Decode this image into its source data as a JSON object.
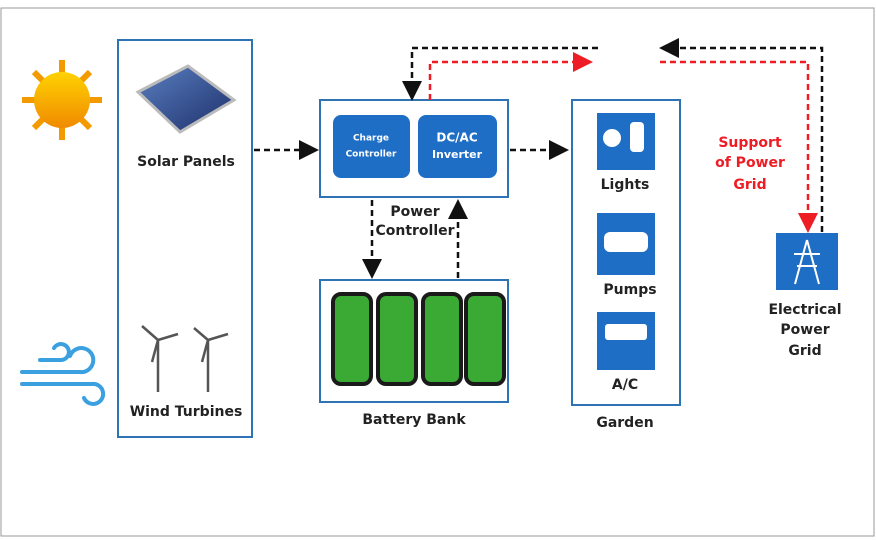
{
  "sources": {
    "solar": "Solar Panels",
    "wind": "Wind Turbines"
  },
  "power_controller": {
    "charge_controller": [
      "Charge",
      "Controller"
    ],
    "inverter": [
      "DC/AC",
      "Inverter"
    ],
    "label": [
      "Power",
      "Controller"
    ]
  },
  "battery_bank": "Battery Bank",
  "garden": {
    "title": "Garden",
    "loads": [
      "Lights",
      "Pumps",
      "A/C"
    ]
  },
  "grid": {
    "support": [
      "Support",
      "of Power",
      "Grid"
    ],
    "label": [
      "Electrical",
      "Power",
      "Grid"
    ]
  }
}
